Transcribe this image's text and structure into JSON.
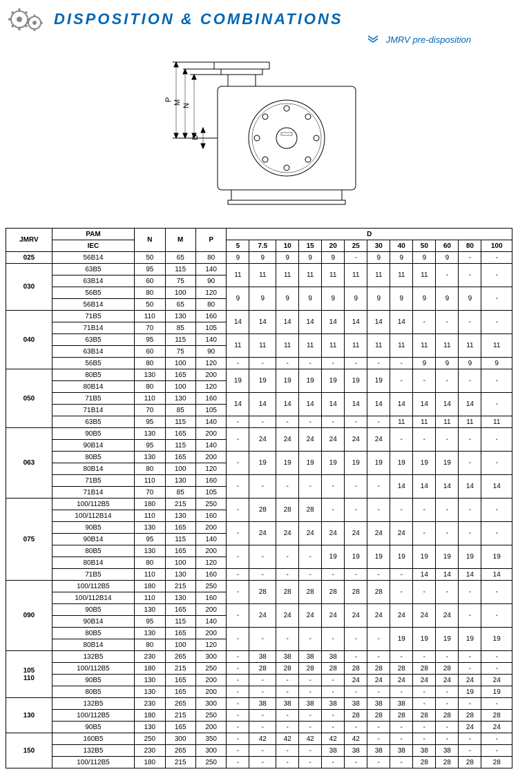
{
  "header": {
    "title": "DISPOSITION & COMBINATIONS",
    "subtitle": "JMRV pre-disposition"
  },
  "headers": {
    "jmrv": "JMRV",
    "pam": "PAM",
    "iec": "IEC",
    "n": "N",
    "m": "M",
    "p": "P",
    "d": "D"
  },
  "d_cols": [
    "5",
    "7.5",
    "10",
    "15",
    "20",
    "25",
    "30",
    "40",
    "50",
    "60",
    "80",
    "100"
  ],
  "groups": [
    {
      "jmrv": "025",
      "rows": [
        {
          "iec": "56B14",
          "n": "50",
          "m": "65",
          "p": "80",
          "d": [
            "9",
            "9",
            "9",
            "9",
            "9",
            "-",
            "9",
            "9",
            "9",
            "9",
            "-",
            "-"
          ]
        }
      ]
    },
    {
      "jmrv": "030",
      "rows": [
        {
          "iec": "63B5",
          "n": "95",
          "m": "115",
          "p": "140",
          "d": [
            "11",
            "11",
            "11",
            "11",
            "11",
            "11",
            "11",
            "11",
            "11",
            "-",
            "-",
            "-"
          ],
          "merge_down": true
        },
        {
          "iec": "63B14",
          "n": "60",
          "m": "75",
          "p": "90"
        },
        {
          "iec": "56B5",
          "n": "80",
          "m": "100",
          "p": "120",
          "d": [
            "9",
            "9",
            "9",
            "9",
            "9",
            "9",
            "9",
            "9",
            "9",
            "9",
            "9",
            "-"
          ],
          "merge_down": true
        },
        {
          "iec": "56B14",
          "n": "50",
          "m": "65",
          "p": "80"
        }
      ]
    },
    {
      "jmrv": "040",
      "rows": [
        {
          "iec": "71B5",
          "n": "110",
          "m": "130",
          "p": "160",
          "d": [
            "14",
            "14",
            "14",
            "14",
            "14",
            "14",
            "14",
            "14",
            "-",
            "-",
            "-",
            "-"
          ],
          "merge_down": true
        },
        {
          "iec": "71B14",
          "n": "70",
          "m": "85",
          "p": "105"
        },
        {
          "iec": "63B5",
          "n": "95",
          "m": "115",
          "p": "140",
          "d": [
            "11",
            "11",
            "11",
            "11",
            "11",
            "11",
            "11",
            "11",
            "11",
            "11",
            "11",
            "11"
          ],
          "merge_down": true
        },
        {
          "iec": "63B14",
          "n": "60",
          "m": "75",
          "p": "90"
        },
        {
          "iec": "56B5",
          "n": "80",
          "m": "100",
          "p": "120",
          "d": [
            "-",
            "-",
            "-",
            "-",
            "-",
            "-",
            "-",
            "-",
            "9",
            "9",
            "9",
            "9"
          ]
        }
      ]
    },
    {
      "jmrv": "050",
      "rows": [
        {
          "iec": "80B5",
          "n": "130",
          "m": "165",
          "p": "200",
          "d": [
            "19",
            "19",
            "19",
            "19",
            "19",
            "19",
            "19",
            "-",
            "-",
            "-",
            "-",
            "-"
          ],
          "merge_down": true
        },
        {
          "iec": "80B14",
          "n": "80",
          "m": "100",
          "p": "120"
        },
        {
          "iec": "71B5",
          "n": "110",
          "m": "130",
          "p": "160",
          "d": [
            "14",
            "14",
            "14",
            "14",
            "14",
            "14",
            "14",
            "14",
            "14",
            "14",
            "14",
            "-"
          ],
          "merge_down": true
        },
        {
          "iec": "71B14",
          "n": "70",
          "m": "85",
          "p": "105"
        },
        {
          "iec": "63B5",
          "n": "95",
          "m": "115",
          "p": "140",
          "d": [
            "-",
            "-",
            "-",
            "-",
            "-",
            "-",
            "-",
            "11",
            "11",
            "11",
            "11",
            "11"
          ]
        }
      ]
    },
    {
      "jmrv": "063",
      "rows": [
        {
          "iec": "90B5",
          "n": "130",
          "m": "165",
          "p": "200",
          "d": [
            "-",
            "24",
            "24",
            "24",
            "24",
            "24",
            "24",
            "-",
            "-",
            "-",
            "-",
            "-"
          ],
          "merge_down": true
        },
        {
          "iec": "90B14",
          "n": "95",
          "m": "115",
          "p": "140"
        },
        {
          "iec": "80B5",
          "n": "130",
          "m": "165",
          "p": "200",
          "d": [
            "-",
            "19",
            "19",
            "19",
            "19",
            "19",
            "19",
            "19",
            "19",
            "19",
            "-",
            "-"
          ],
          "merge_down": true
        },
        {
          "iec": "80B14",
          "n": "80",
          "m": "100",
          "p": "120"
        },
        {
          "iec": "71B5",
          "n": "110",
          "m": "130",
          "p": "160",
          "d": [
            "-",
            "-",
            "-",
            "-",
            "-",
            "-",
            "-",
            "14",
            "14",
            "14",
            "14",
            "14"
          ],
          "merge_down": true
        },
        {
          "iec": "71B14",
          "n": "70",
          "m": "85",
          "p": "105"
        }
      ]
    },
    {
      "jmrv": "075",
      "rows": [
        {
          "iec": "100/112B5",
          "n": "180",
          "m": "215",
          "p": "250",
          "d": [
            "-",
            "28",
            "28",
            "28",
            "-",
            "-",
            "-",
            "-",
            "-",
            "-",
            "-",
            "-"
          ],
          "merge_down": true
        },
        {
          "iec": "100/112B14",
          "n": "110",
          "m": "130",
          "p": "160"
        },
        {
          "iec": "90B5",
          "n": "130",
          "m": "165",
          "p": "200",
          "d": [
            "-",
            "24",
            "24",
            "24",
            "24",
            "24",
            "24",
            "24",
            "-",
            "-",
            "-",
            "-"
          ],
          "merge_down": true
        },
        {
          "iec": "90B14",
          "n": "95",
          "m": "115",
          "p": "140"
        },
        {
          "iec": "80B5",
          "n": "130",
          "m": "165",
          "p": "200",
          "d": [
            "-",
            "-",
            "-",
            "-",
            "19",
            "19",
            "19",
            "19",
            "19",
            "19",
            "19",
            "19"
          ],
          "merge_down": true
        },
        {
          "iec": "80B14",
          "n": "80",
          "m": "100",
          "p": "120"
        },
        {
          "iec": "71B5",
          "n": "110",
          "m": "130",
          "p": "160",
          "d": [
            "-",
            "-",
            "-",
            "-",
            "-",
            "-",
            "-",
            "-",
            "14",
            "14",
            "14",
            "14"
          ]
        }
      ]
    },
    {
      "jmrv": "090",
      "rows": [
        {
          "iec": "100/112B5",
          "n": "180",
          "m": "215",
          "p": "250",
          "d": [
            "-",
            "28",
            "28",
            "28",
            "28",
            "28",
            "28",
            "-",
            "-",
            "-",
            "-",
            "-"
          ],
          "merge_down": true
        },
        {
          "iec": "100/112B14",
          "n": "110",
          "m": "130",
          "p": "160"
        },
        {
          "iec": "90B5",
          "n": "130",
          "m": "165",
          "p": "200",
          "d": [
            "-",
            "24",
            "24",
            "24",
            "24",
            "24",
            "24",
            "24",
            "24",
            "24",
            "-",
            "-"
          ],
          "merge_down": true
        },
        {
          "iec": "90B14",
          "n": "95",
          "m": "115",
          "p": "140"
        },
        {
          "iec": "80B5",
          "n": "130",
          "m": "165",
          "p": "200",
          "d": [
            "-",
            "-",
            "-",
            "-",
            "-",
            "-",
            "-",
            "19",
            "19",
            "19",
            "19",
            "19"
          ],
          "merge_down": true
        },
        {
          "iec": "80B14",
          "n": "80",
          "m": "100",
          "p": "120"
        }
      ]
    },
    {
      "jmrv": "105 110",
      "rows": [
        {
          "iec": "132B5",
          "n": "230",
          "m": "265",
          "p": "300",
          "d": [
            "-",
            "38",
            "38",
            "38",
            "38",
            "-",
            "-",
            "-",
            "-",
            "-",
            "-",
            "-"
          ]
        },
        {
          "iec": "100/112B5",
          "n": "180",
          "m": "215",
          "p": "250",
          "d": [
            "-",
            "28",
            "28",
            "28",
            "28",
            "28",
            "28",
            "28",
            "28",
            "28",
            "-",
            "-"
          ]
        },
        {
          "iec": "90B5",
          "n": "130",
          "m": "165",
          "p": "200",
          "d": [
            "-",
            "-",
            "-",
            "-",
            "-",
            "24",
            "24",
            "24",
            "24",
            "24",
            "24",
            "24"
          ]
        },
        {
          "iec": "80B5",
          "n": "130",
          "m": "165",
          "p": "200",
          "d": [
            "-",
            "-",
            "-",
            "-",
            "-",
            "-",
            "-",
            "-",
            "-",
            "-",
            "19",
            "19"
          ]
        }
      ]
    },
    {
      "jmrv": "130",
      "rows": [
        {
          "iec": "132B5",
          "n": "230",
          "m": "265",
          "p": "300",
          "d": [
            "-",
            "38",
            "38",
            "38",
            "38",
            "38",
            "38",
            "38",
            "-",
            "-",
            "-",
            "-"
          ]
        },
        {
          "iec": "100/112B5",
          "n": "180",
          "m": "215",
          "p": "250",
          "d": [
            "-",
            "-",
            "-",
            "-",
            "-",
            "28",
            "28",
            "28",
            "28",
            "28",
            "28",
            "28"
          ]
        },
        {
          "iec": "90B5",
          "n": "130",
          "m": "165",
          "p": "200",
          "d": [
            "-",
            "-",
            "-",
            "-",
            "-",
            "-",
            "-",
            "-",
            "-",
            "-",
            "24",
            "24"
          ]
        }
      ]
    },
    {
      "jmrv": "150",
      "rows": [
        {
          "iec": "160B5",
          "n": "250",
          "m": "300",
          "p": "350",
          "d": [
            "-",
            "42",
            "42",
            "42",
            "42",
            "42",
            "-",
            "-",
            "-",
            "-",
            "-",
            "-"
          ]
        },
        {
          "iec": "132B5",
          "n": "230",
          "m": "265",
          "p": "300",
          "d": [
            "-",
            "-",
            "-",
            "-",
            "38",
            "38",
            "38",
            "38",
            "38",
            "38",
            "-",
            "-"
          ]
        },
        {
          "iec": "100/112B5",
          "n": "180",
          "m": "215",
          "p": "250",
          "d": [
            "-",
            "-",
            "-",
            "-",
            "-",
            "-",
            "-",
            "-",
            "28",
            "28",
            "28",
            "28"
          ]
        }
      ]
    }
  ],
  "colors": {
    "title": "#0066b3",
    "border": "#000"
  }
}
